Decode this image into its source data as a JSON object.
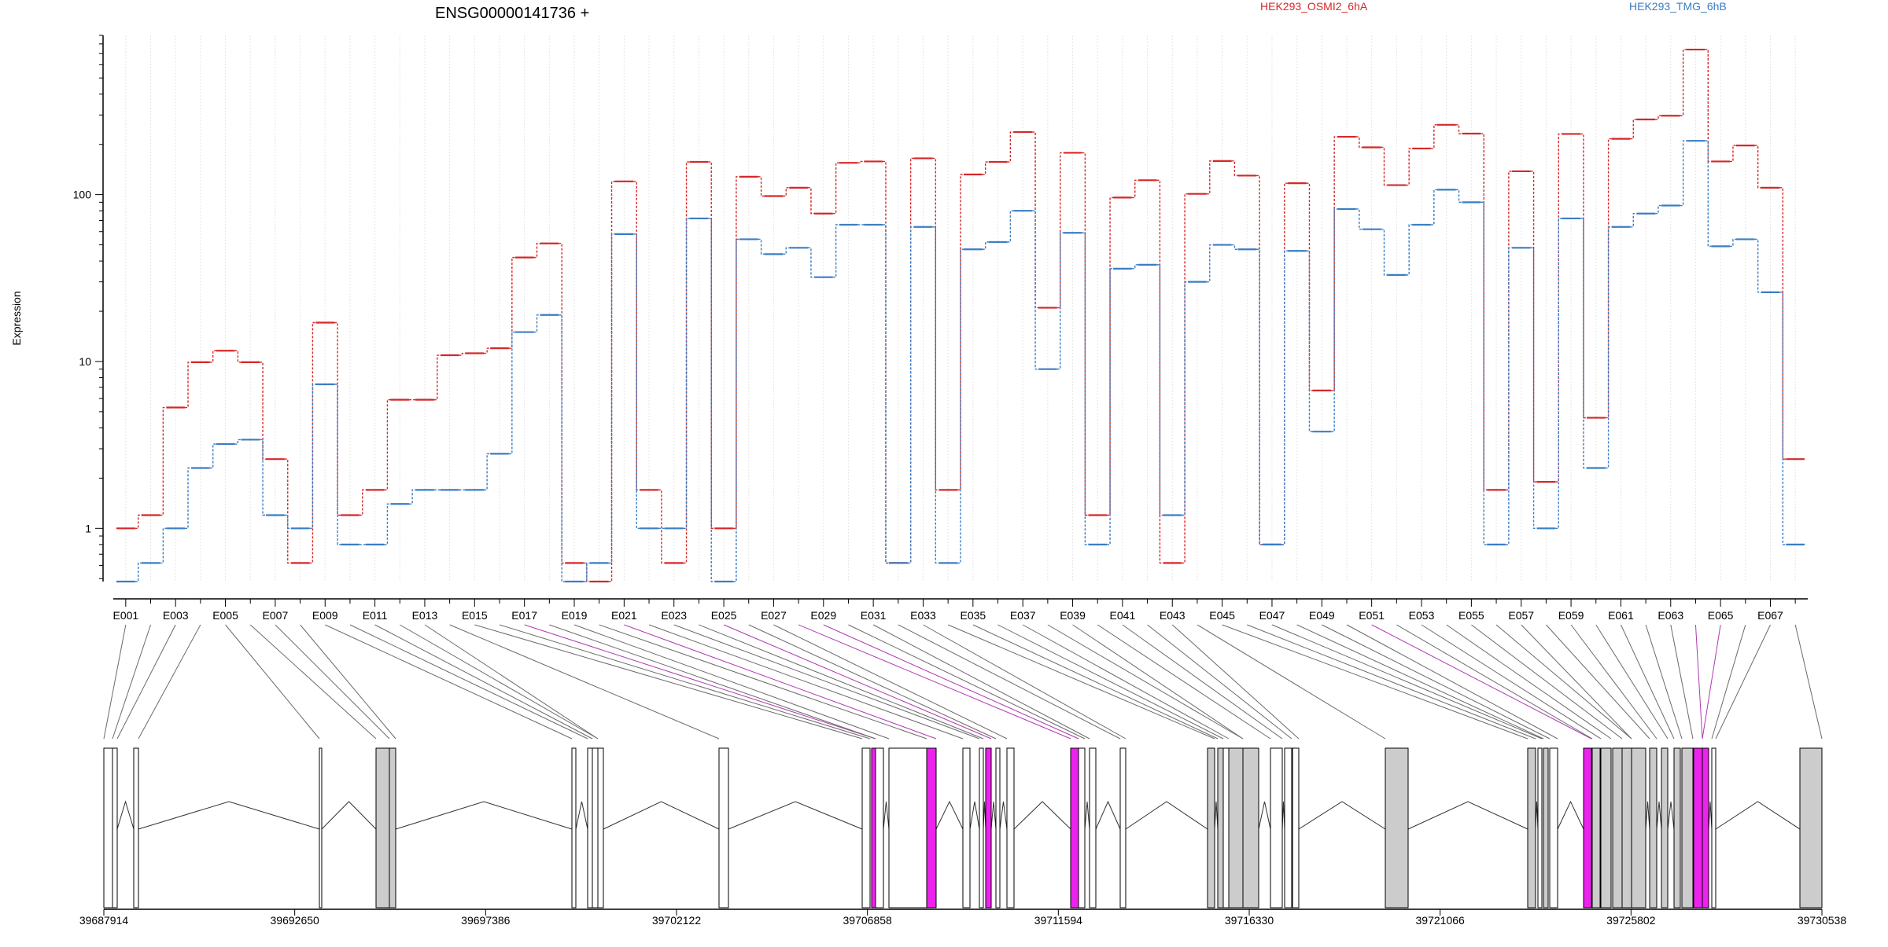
{
  "chart_data": {
    "type": "line",
    "title": "ENSG00000141736 +",
    "ylabel": "Expression",
    "y_scale": "log",
    "ylim": [
      0.48,
      900
    ],
    "y_ticks": [
      "1",
      "10",
      "100"
    ],
    "grid": "vertical",
    "legend_position": "top-right",
    "categories": [
      "E001",
      "E002",
      "E003",
      "E004",
      "E005",
      "E006",
      "E007",
      "E008",
      "E009",
      "E010",
      "E011",
      "E012",
      "E013",
      "E014",
      "E015",
      "E016",
      "E017",
      "E018",
      "E019",
      "E020",
      "E021",
      "E022",
      "E023",
      "E024",
      "E025",
      "E026",
      "E027",
      "E028",
      "E029",
      "E030",
      "E031",
      "E032",
      "E033",
      "E034",
      "E035",
      "E036",
      "E037",
      "E038",
      "E039",
      "E040",
      "E041",
      "E042",
      "E043",
      "E044",
      "E045",
      "E046",
      "E047",
      "E048",
      "E049",
      "E050",
      "E051",
      "E052",
      "E053",
      "E054",
      "E055",
      "E056",
      "E057",
      "E058",
      "E059",
      "E060",
      "E061",
      "E062",
      "E063",
      "E064",
      "E065",
      "E066",
      "E067",
      "E068"
    ],
    "x_tick_labels": [
      "E001",
      "E003",
      "E005",
      "E007",
      "E009",
      "E011",
      "E013",
      "E015",
      "E017",
      "E019",
      "E021",
      "E023",
      "E025",
      "E027",
      "E029",
      "E031",
      "E033",
      "E035",
      "E037",
      "E039",
      "E041",
      "E043",
      "E045",
      "E047",
      "E049",
      "E051",
      "E053",
      "E055",
      "E057",
      "E059",
      "E061",
      "E063",
      "E065",
      "E067"
    ],
    "series": [
      {
        "name": "HEK293_OSMI2_6hA",
        "color": "#d62728",
        "values": [
          1.0,
          1.2,
          5.3,
          9.9,
          11.6,
          9.9,
          2.6,
          0.62,
          17.1,
          1.2,
          1.7,
          5.9,
          5.9,
          10.9,
          11.2,
          12.0,
          42,
          51,
          0.62,
          0.48,
          120,
          1.7,
          0.62,
          157,
          1.0,
          128,
          98,
          110,
          77,
          155,
          158,
          0.62,
          165,
          1.7,
          132,
          157,
          237,
          21,
          178,
          1.2,
          96,
          122,
          0.62,
          101,
          159,
          130,
          0.8,
          117,
          6.7,
          222,
          192,
          114,
          189,
          262,
          232,
          1.7,
          138,
          1.9,
          231,
          4.6,
          216,
          282,
          297,
          740,
          158,
          197,
          110,
          2.6
        ]
      },
      {
        "name": "HEK293_TMG_6hB",
        "color": "#3a7dc4",
        "values": [
          0.48,
          0.62,
          1.0,
          2.3,
          3.2,
          3.4,
          1.2,
          1.0,
          7.3,
          0.8,
          0.8,
          1.4,
          1.7,
          1.7,
          1.7,
          2.8,
          15,
          19,
          0.48,
          0.62,
          58,
          1.0,
          1.0,
          72,
          0.48,
          54,
          44,
          48,
          32,
          66,
          66,
          0.62,
          64,
          0.62,
          47,
          52,
          80,
          9.0,
          59,
          0.8,
          36,
          38,
          1.2,
          30,
          50,
          47,
          0.8,
          46,
          3.8,
          82,
          62,
          33,
          66,
          107,
          90,
          0.8,
          48,
          1.0,
          72,
          2.3,
          64,
          77,
          86,
          210,
          49,
          54,
          26,
          0.8
        ]
      }
    ],
    "gene_axis_ticks": [
      "39687914",
      "39692650",
      "39697386",
      "39702122",
      "39706858",
      "39711594",
      "39716330",
      "39721066",
      "39725802",
      "39730538"
    ],
    "gene_model": {
      "range": [
        39687914,
        39730538
      ],
      "feature_colors": {
        "exonic_part": "#cccccc",
        "highlighted_part": "#ee22ee",
        "intronic_part": "#ffffff"
      }
    }
  }
}
